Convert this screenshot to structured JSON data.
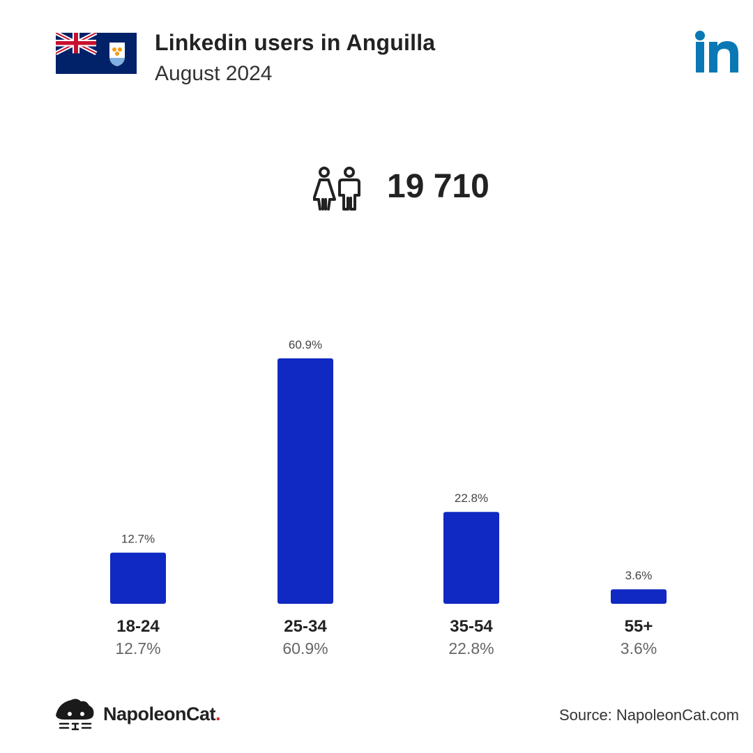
{
  "header": {
    "title": "Linkedin users in Anguilla",
    "subtitle": "August 2024",
    "flag_icon": "anguilla-flag-icon",
    "platform_icon": "linkedin-logo-icon"
  },
  "summary": {
    "icon": "users-icon",
    "total_users": "19 710"
  },
  "chart_data": {
    "type": "bar",
    "categories": [
      "18-24",
      "25-34",
      "35-54",
      "55+"
    ],
    "values": [
      12.7,
      60.9,
      22.8,
      3.6
    ],
    "value_labels": [
      "12.7%",
      "60.9%",
      "22.8%",
      "3.6%"
    ],
    "ylim": [
      0,
      60.9
    ],
    "grid": false,
    "bar_color": "#1029c3"
  },
  "footer": {
    "brand_name": "NapoleonCat",
    "brand_dot": ".",
    "source": "Source: NapoleonCat.com",
    "brand_dot_color": "#e0262f"
  },
  "colors": {
    "linkedin_blue": "#0a78b5",
    "text_dark": "#222222",
    "text_gray": "#666666"
  }
}
